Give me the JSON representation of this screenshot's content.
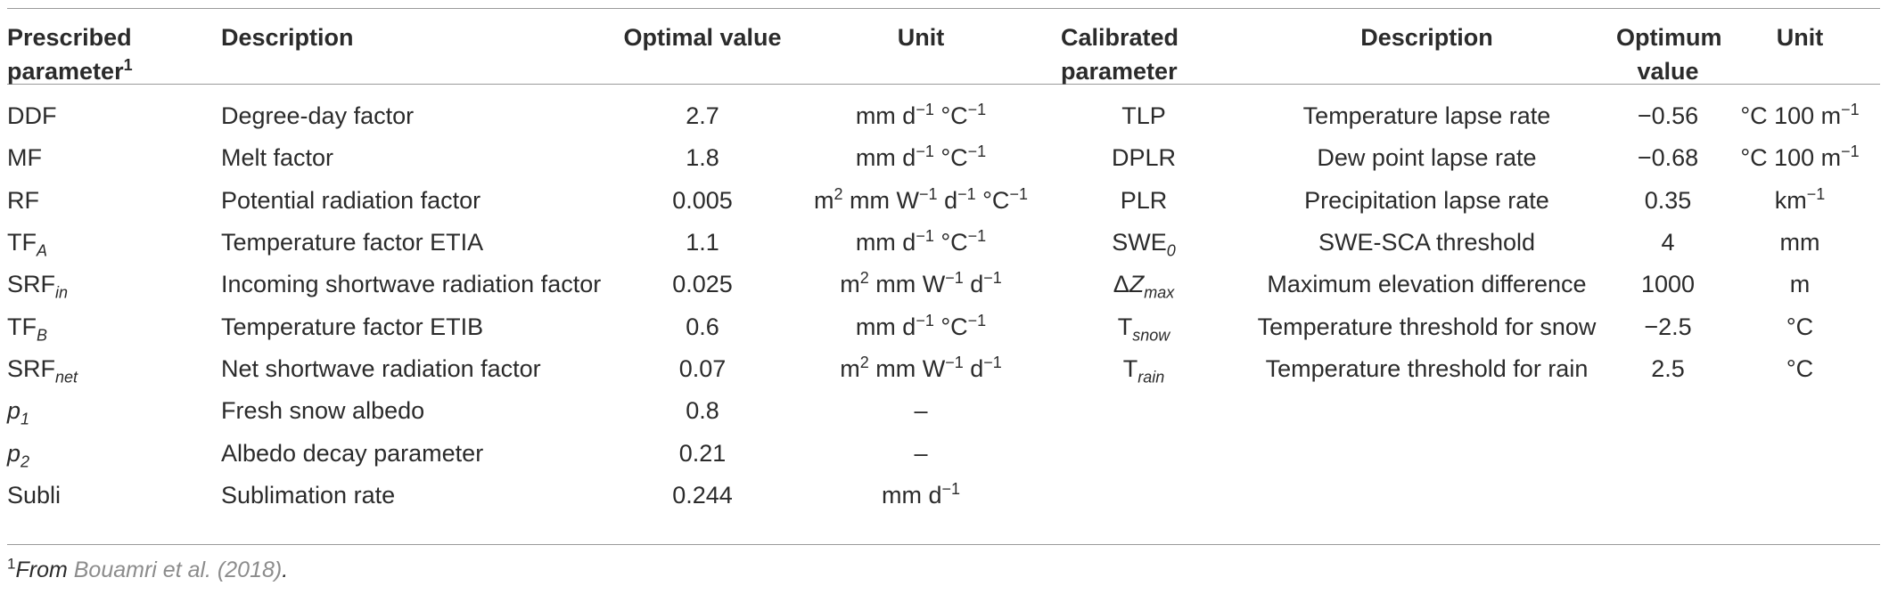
{
  "headers": {
    "prescribed_parameter": "Prescribed parameter",
    "prescribed_parameter_sup": "1",
    "description_left": "Description",
    "optimal_value": "Optimal value",
    "unit_left": "Unit",
    "calibrated_parameter": "Calibrated parameter",
    "description_right": "Description",
    "optimum_value": "Optimum value",
    "unit_right": "Unit"
  },
  "rows": [
    {
      "p_base": "DDF",
      "p_sub": "",
      "description": "Degree-day factor",
      "value": "2.7",
      "unit": "mm d<sup>−1</sup> °C<sup>−1</sup>",
      "c_base": "TLP",
      "c_sub": "",
      "c_description": "Temperature lapse rate",
      "c_value": "−0.56",
      "c_unit": "°C 100 m<sup>−1</sup>"
    },
    {
      "p_base": "MF",
      "p_sub": "",
      "description": "Melt factor",
      "value": "1.8",
      "unit": "mm d<sup>−1</sup> °C<sup>−1</sup>",
      "c_base": "DPLR",
      "c_sub": "",
      "c_description": "Dew point lapse rate",
      "c_value": "−0.68",
      "c_unit": "°C 100 m<sup>−1</sup>"
    },
    {
      "p_base": "RF",
      "p_sub": "",
      "description": "Potential radiation factor",
      "value": "0.005",
      "unit": "m<sup>2</sup> mm W<sup>−1</sup> d<sup>−1</sup> °C<sup>−1</sup>",
      "c_base": "PLR",
      "c_sub": "",
      "c_description": "Precipitation lapse rate",
      "c_value": "0.35",
      "c_unit": "km<sup>−1</sup>"
    },
    {
      "p_base": "TF",
      "p_sub": "A",
      "description": "Temperature factor ETIA",
      "value": "1.1",
      "unit": "mm d<sup>−1</sup> °C<sup>−1</sup>",
      "c_base": "SWE",
      "c_sub": "0",
      "c_description": "SWE-SCA threshold",
      "c_value": "4",
      "c_unit": "mm"
    },
    {
      "p_base": "SRF",
      "p_sub": "in",
      "description": "Incoming shortwave radiation factor",
      "value": "0.025",
      "unit": "m<sup>2</sup> mm W<sup>−1</sup> d<sup>−1</sup>",
      "c_base": "ΔZ",
      "c_sub": "max",
      "c_description": "Maximum elevation difference",
      "c_value": "1000",
      "c_unit": "m"
    },
    {
      "p_base": "TF",
      "p_sub": "B",
      "description": "Temperature factor ETIB",
      "value": "0.6",
      "unit": "mm d<sup>−1</sup> °C<sup>−1</sup>",
      "c_base": "T",
      "c_sub": "snow",
      "c_description": "Temperature threshold for snow",
      "c_value": "−2.5",
      "c_unit": "°C"
    },
    {
      "p_base": "SRF",
      "p_sub": "net",
      "description": "Net shortwave radiation factor",
      "value": "0.07",
      "unit": "m<sup>2</sup> mm W<sup>−1</sup> d<sup>−1</sup>",
      "c_base": "T",
      "c_sub": "rain",
      "c_description": "Temperature threshold for rain",
      "c_value": "2.5",
      "c_unit": "°C"
    },
    {
      "p_base": "p",
      "p_sub": "1",
      "description": "Fresh snow albedo",
      "value": "0.8",
      "unit": "–",
      "c_base": "",
      "c_sub": "",
      "c_description": "",
      "c_value": "",
      "c_unit": ""
    },
    {
      "p_base": "p",
      "p_sub": "2",
      "description": "Albedo decay parameter",
      "value": "0.21",
      "unit": "–",
      "c_base": "",
      "c_sub": "",
      "c_description": "",
      "c_value": "",
      "c_unit": ""
    },
    {
      "p_base": "Subli",
      "p_sub": "",
      "description": "Sublimation rate",
      "value": "0.244",
      "unit": "mm d<sup>−1</sup>",
      "c_base": "",
      "c_sub": "",
      "c_description": "",
      "c_value": "",
      "c_unit": ""
    }
  ],
  "footnote": {
    "marker": "1",
    "prefix": "From ",
    "citation": "Bouamri et al. (2018)",
    "suffix": "."
  }
}
